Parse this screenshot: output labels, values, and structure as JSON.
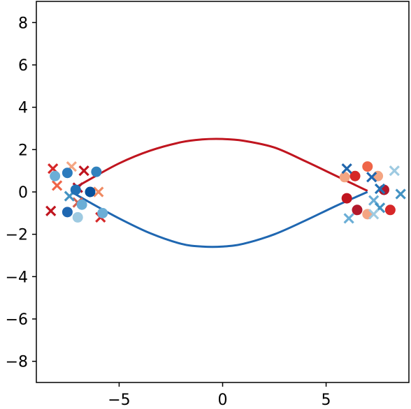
{
  "chart_data": {
    "type": "scatter",
    "title": "",
    "xlabel": "",
    "ylabel": "",
    "xlim": [
      -9.0,
      9.0
    ],
    "ylim": [
      -9.0,
      9.0
    ],
    "grid": false,
    "x_ticks": [
      -5,
      0,
      5
    ],
    "x_tick_labels": [
      "−5",
      "0",
      "5"
    ],
    "y_ticks": [
      -8,
      -6,
      -4,
      -2,
      0,
      2,
      4,
      6,
      8
    ],
    "y_tick_labels": [
      "−8",
      "−6",
      "−4",
      "−2",
      "0",
      "2",
      "4",
      "6",
      "8"
    ],
    "curves": [
      {
        "color": "#c0151f",
        "points": [
          [
            -7.3,
            0.1
          ],
          [
            -6.5,
            0.55
          ],
          [
            -5.0,
            1.35
          ],
          [
            -3.5,
            1.95
          ],
          [
            -2.0,
            2.35
          ],
          [
            -1.0,
            2.48
          ],
          [
            0.0,
            2.5
          ],
          [
            1.0,
            2.42
          ],
          [
            2.5,
            2.1
          ],
          [
            4.0,
            1.45
          ],
          [
            5.5,
            0.75
          ],
          [
            7.0,
            0.05
          ]
        ]
      },
      {
        "color": "#1f67b1",
        "points": [
          [
            -7.3,
            0.0
          ],
          [
            -6.5,
            -0.45
          ],
          [
            -5.0,
            -1.25
          ],
          [
            -3.5,
            -1.95
          ],
          [
            -2.0,
            -2.45
          ],
          [
            -1.0,
            -2.58
          ],
          [
            0.0,
            -2.58
          ],
          [
            1.0,
            -2.45
          ],
          [
            2.5,
            -2.0
          ],
          [
            4.0,
            -1.35
          ],
          [
            5.5,
            -0.65
          ],
          [
            7.0,
            0.0
          ]
        ]
      }
    ],
    "markers": [
      {
        "marker": "x",
        "color": "#d62728",
        "x": -8.2,
        "y": 1.1
      },
      {
        "marker": "x",
        "color": "#ef6548",
        "x": -8.0,
        "y": 0.3
      },
      {
        "marker": "x",
        "color": "#c0151f",
        "x": -8.3,
        "y": -0.9
      },
      {
        "marker": "x",
        "color": "#f4a582",
        "x": -7.3,
        "y": 1.2
      },
      {
        "marker": "x",
        "color": "#c0151f",
        "x": -6.7,
        "y": 1.0
      },
      {
        "marker": "x",
        "color": "#b2182b",
        "x": -7.0,
        "y": 0.2
      },
      {
        "marker": "x",
        "color": "#d6604d",
        "x": -7.0,
        "y": -0.5
      },
      {
        "marker": "x",
        "color": "#ef8a62",
        "x": -6.0,
        "y": 0.0
      },
      {
        "marker": "x",
        "color": "#d62728",
        "x": -5.9,
        "y": -1.2
      },
      {
        "marker": "x",
        "color": "#4393c3",
        "x": -7.4,
        "y": -0.2
      },
      {
        "marker": "o",
        "color": "#6baed6",
        "x": -8.1,
        "y": 0.75
      },
      {
        "marker": "o",
        "color": "#2c7bbd",
        "x": -7.5,
        "y": 0.9
      },
      {
        "marker": "o",
        "color": "#1f67b1",
        "x": -7.5,
        "y": -0.95
      },
      {
        "marker": "o",
        "color": "#9ecae1",
        "x": -7.0,
        "y": -1.2
      },
      {
        "marker": "o",
        "color": "#6baed6",
        "x": -6.8,
        "y": -0.6
      },
      {
        "marker": "o",
        "color": "#2171b5",
        "x": -7.1,
        "y": 0.1
      },
      {
        "marker": "o",
        "color": "#08519c",
        "x": -6.4,
        "y": 0.0
      },
      {
        "marker": "o",
        "color": "#3182bd",
        "x": -6.1,
        "y": 0.95
      },
      {
        "marker": "o",
        "color": "#6baed6",
        "x": -5.8,
        "y": -1.0
      },
      {
        "marker": "o",
        "color": "#f4a582",
        "x": 5.9,
        "y": 0.7
      },
      {
        "marker": "o",
        "color": "#d62728",
        "x": 6.4,
        "y": 0.75
      },
      {
        "marker": "o",
        "color": "#c0151f",
        "x": 6.0,
        "y": -0.3
      },
      {
        "marker": "o",
        "color": "#b2182b",
        "x": 6.5,
        "y": -0.85
      },
      {
        "marker": "o",
        "color": "#f4a582",
        "x": 7.0,
        "y": -1.05
      },
      {
        "marker": "o",
        "color": "#ef6548",
        "x": 7.0,
        "y": 1.2
      },
      {
        "marker": "o",
        "color": "#f4a582",
        "x": 7.5,
        "y": 0.75
      },
      {
        "marker": "o",
        "color": "#b2182b",
        "x": 7.8,
        "y": 0.1
      },
      {
        "marker": "o",
        "color": "#d62728",
        "x": 8.1,
        "y": -0.85
      },
      {
        "marker": "x",
        "color": "#2166ac",
        "x": 6.0,
        "y": 1.1
      },
      {
        "marker": "x",
        "color": "#1f67b1",
        "x": 7.2,
        "y": 0.7
      },
      {
        "marker": "x",
        "color": "#9ecae1",
        "x": 8.3,
        "y": 1.0
      },
      {
        "marker": "x",
        "color": "#4393c3",
        "x": 8.6,
        "y": -0.1
      },
      {
        "marker": "x",
        "color": "#2171b5",
        "x": 7.6,
        "y": 0.15
      },
      {
        "marker": "x",
        "color": "#6baed6",
        "x": 7.3,
        "y": -0.4
      },
      {
        "marker": "x",
        "color": "#4393c3",
        "x": 7.6,
        "y": -0.75
      },
      {
        "marker": "x",
        "color": "#9ecae1",
        "x": 7.3,
        "y": -1.05
      },
      {
        "marker": "x",
        "color": "#6baed6",
        "x": 6.1,
        "y": -1.25
      }
    ]
  }
}
